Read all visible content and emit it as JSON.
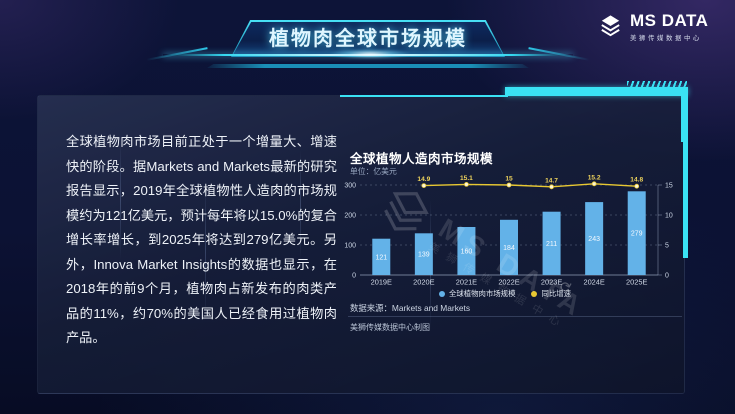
{
  "slide": {
    "title": "植物肉全球市场规模"
  },
  "logo": {
    "name": "MS DATA",
    "subtitle": "美狮传媒数据中心"
  },
  "body_text": {
    "paragraph": "全球植物肉市场目前正处于一个增量大、增速快的阶段。据Markets and Markets最新的研究报告显示，2019年全球植物性人造肉的市场规模约为121亿美元，预计每年将以15.0%的复合增长率增长，到2025年将达到279亿美元。另外，Innova Market Insights的数据也显示，在2018年的前9个月，植物肉占新发布的肉类产品的11%，约70%的美国人已经食用过植物肉产品。"
  },
  "chart": {
    "title": "全球植物人造肉市场规模",
    "unit_label": "单位：亿美元",
    "source": "数据来源：Markets and Markets",
    "credit": "美狮传媒数据中心制图",
    "watermark_text": "MS DATA",
    "watermark_subtext": "美狮传媒数据中心"
  },
  "chart_data": {
    "type": "bar",
    "subtype": "bar+line combo",
    "title": "全球植物人造肉市场规模",
    "unit": "亿美元",
    "categories": [
      "2019E",
      "2020E",
      "2021E",
      "2022E",
      "2023E",
      "2024E",
      "2025E"
    ],
    "series": [
      {
        "name": "全球植物肉市场规模",
        "type": "bar",
        "axis": "left",
        "color": "#63b2e8",
        "values": [
          121,
          139,
          160,
          184,
          211,
          243,
          279
        ]
      },
      {
        "name": "同比增速",
        "type": "line",
        "axis": "right",
        "color": "#e8c832",
        "unit": "%",
        "categories": [
          "2020E",
          "2021E",
          "2022E",
          "2023E",
          "2024E",
          "2025E"
        ],
        "values": [
          14.9,
          15.1,
          15,
          14.7,
          15.2,
          14.8
        ]
      }
    ],
    "left_axis": {
      "ticks": [
        0,
        100,
        200,
        300
      ],
      "min": 0,
      "max": 300
    },
    "right_axis": {
      "ticks": [
        0,
        5,
        10,
        15
      ],
      "min": 0,
      "max": 15
    },
    "legend": {
      "position": "bottom",
      "items": [
        "全球植物肉市场规模",
        "同比增速"
      ]
    },
    "grid": {
      "horizontal": true,
      "style": "dashed"
    }
  },
  "colors": {
    "accent_cyan": "#3ae2f4",
    "bar_blue": "#63b2e8",
    "line_yellow": "#e8c832",
    "panel_bg": "#1a2240",
    "title_text": "#dff6ff"
  }
}
